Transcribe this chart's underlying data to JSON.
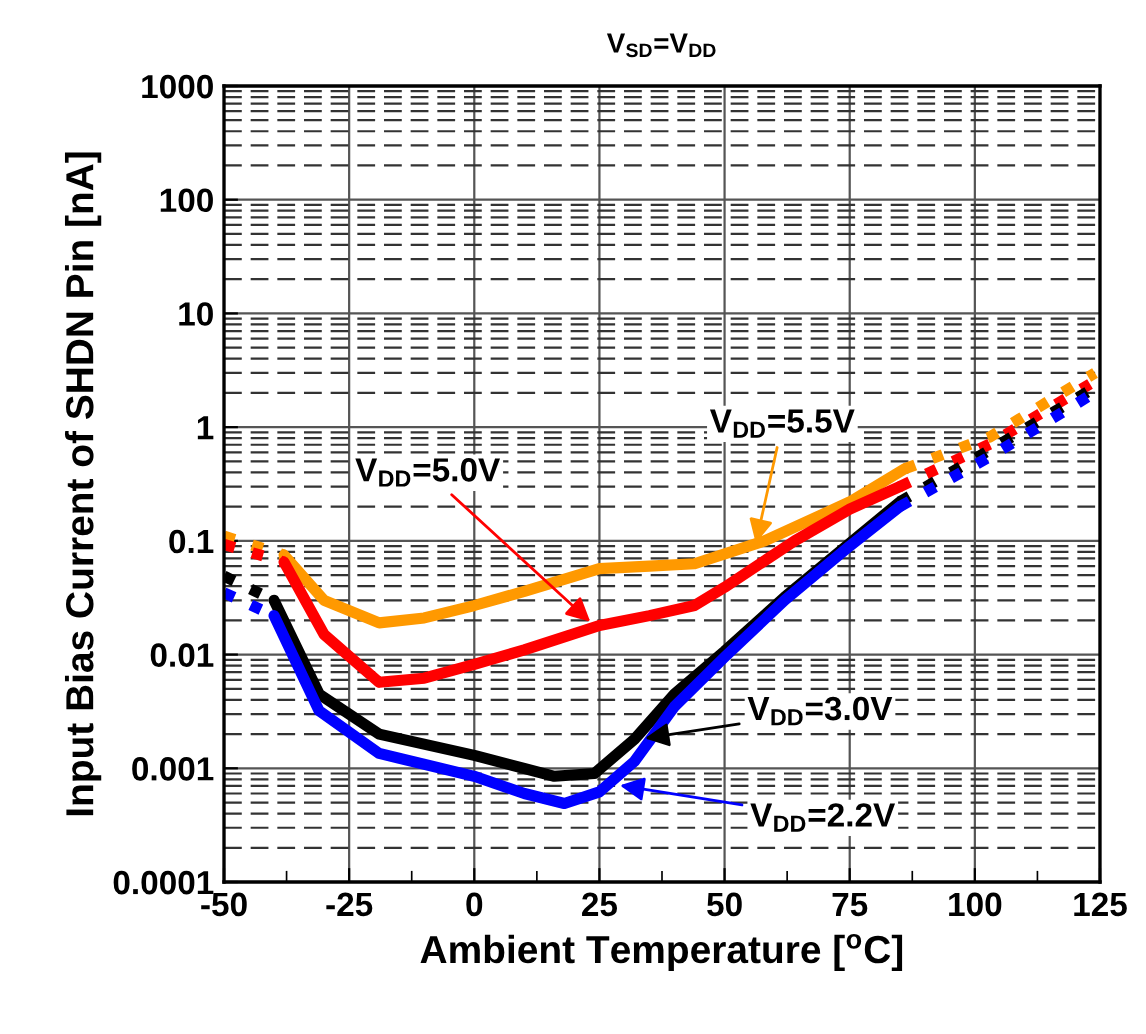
{
  "chart_data": {
    "type": "line",
    "title": "V$_{SD}$=V$_{DD}$",
    "xlabel": "Ambient Temperature [$^{o}$C]",
    "ylabel": "Input Bias Current of SHDN Pin [nA]",
    "log": "y",
    "xlim": [
      -50,
      125
    ],
    "xticks": [
      -50,
      -25,
      0,
      25,
      50,
      75,
      100,
      125
    ],
    "ylim": [
      0.0001,
      1000
    ],
    "yticks": [
      {
        "value": 0.0001,
        "label": "0.0001"
      },
      {
        "value": 0.001,
        "label": "0.001"
      },
      {
        "value": 0.01,
        "label": "0.01"
      },
      {
        "value": 0.1,
        "label": "0.1"
      },
      {
        "value": 1,
        "label": "1"
      },
      {
        "value": 10,
        "label": "10"
      },
      {
        "value": 100,
        "label": "100"
      },
      {
        "value": 1000,
        "label": "1000"
      }
    ],
    "grid": true,
    "marker": "none",
    "series": [
      {
        "color": "#ff9900",
        "line_style": "solid",
        "x": [
          -38,
          -30,
          -19,
          -10,
          0,
          10,
          25,
          35,
          44,
          58,
          75,
          86
        ],
        "values": [
          0.075,
          0.03,
          0.019,
          0.021,
          0.027,
          0.036,
          0.057,
          0.06,
          0.063,
          0.1,
          0.22,
          0.43
        ]
      },
      {
        "color": "#ff9900",
        "line_style": "dotted",
        "x": [
          -50,
          -38
        ],
        "values": [
          0.11,
          0.075
        ]
      },
      {
        "color": "#ff9900",
        "line_style": "dotted",
        "x": [
          86,
          103,
          124
        ],
        "values": [
          0.43,
          0.82,
          3.0
        ]
      },
      {
        "color": "#ff0000",
        "line_style": "solid",
        "x": [
          -38,
          -30,
          -19,
          -10,
          0,
          10,
          25,
          35,
          44,
          50,
          64,
          75,
          85
        ],
        "values": [
          0.065,
          0.015,
          0.0057,
          0.0062,
          0.0082,
          0.011,
          0.018,
          0.022,
          0.027,
          0.039,
          0.1,
          0.19,
          0.3
        ]
      },
      {
        "color": "#ff0000",
        "line_style": "dotted",
        "x": [
          -50,
          -38
        ],
        "values": [
          0.093,
          0.065
        ]
      },
      {
        "color": "#ff0000",
        "line_style": "dotted",
        "x": [
          85,
          103,
          123
        ],
        "values": [
          0.3,
          0.71,
          2.4
        ]
      },
      {
        "color": "#000000",
        "line_style": "solid",
        "x": [
          -40,
          -31,
          -19,
          0,
          16,
          24,
          32,
          40,
          50,
          62,
          75,
          85
        ],
        "values": [
          0.03,
          0.0045,
          0.002,
          0.0013,
          0.00085,
          0.0009,
          0.0018,
          0.0045,
          0.0107,
          0.032,
          0.095,
          0.22
        ]
      },
      {
        "color": "#000000",
        "line_style": "dotted",
        "x": [
          -50,
          -40
        ],
        "values": [
          0.049,
          0.03
        ]
      },
      {
        "color": "#000000",
        "line_style": "dotted",
        "x": [
          85,
          103,
          123
        ],
        "values": [
          0.22,
          0.63,
          2.1
        ]
      },
      {
        "color": "#0000ff",
        "line_style": "solid",
        "x": [
          -40,
          -31,
          -19,
          0,
          10,
          18,
          25,
          32,
          40,
          50,
          62,
          75,
          85
        ],
        "values": [
          0.022,
          0.0032,
          0.00135,
          0.00085,
          0.0006,
          0.00049,
          0.00062,
          0.00115,
          0.0035,
          0.0095,
          0.03,
          0.09,
          0.2
        ]
      },
      {
        "color": "#0000ff",
        "line_style": "dotted",
        "x": [
          -50,
          -40
        ],
        "values": [
          0.035,
          0.022
        ]
      },
      {
        "color": "#0000ff",
        "line_style": "dotted",
        "x": [
          85,
          103,
          123
        ],
        "values": [
          0.2,
          0.55,
          1.9
        ]
      }
    ],
    "annotations": [
      {
        "text": "V$_{DD}$=5.0V",
        "x": 24,
        "y": 0.018
      },
      {
        "text": "V$_{DD}$=5.5V",
        "x": 56,
        "y": 0.085
      },
      {
        "text": "V$_{DD}$=3.0V",
        "x": 33,
        "y": 0.0018
      },
      {
        "text": "V$_{DD}$=2.2V",
        "x": 28,
        "y": 0.00072
      }
    ]
  }
}
